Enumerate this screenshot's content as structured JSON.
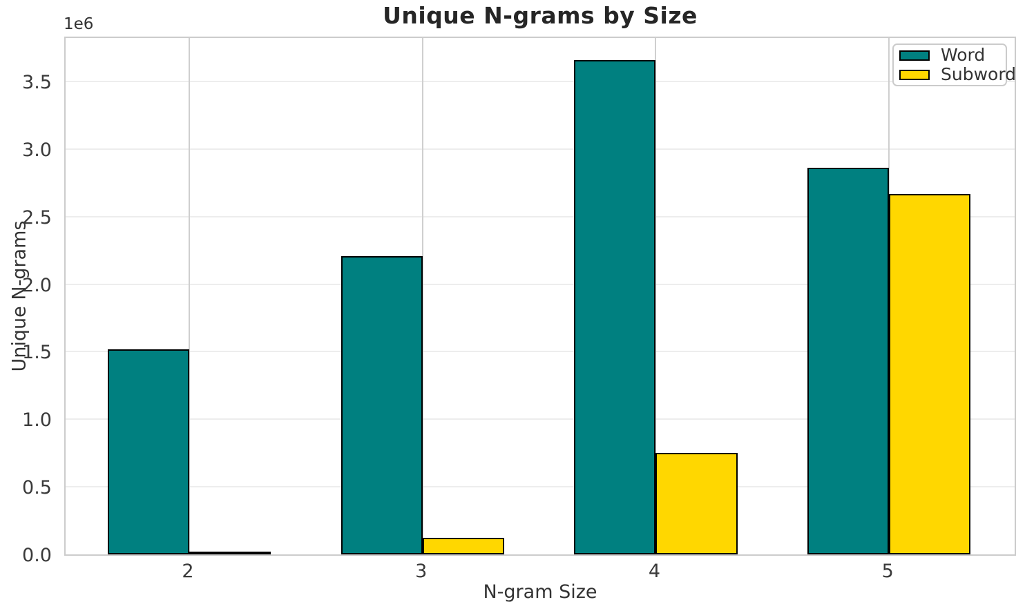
{
  "figure": {
    "title": "Unique N-grams by Size",
    "xlabel": "N-gram Size",
    "ylabel": "Unique N-grams",
    "offset_text": "1e6"
  },
  "legend": {
    "items": [
      {
        "label": "Word",
        "color": "#008080"
      },
      {
        "label": "Subword",
        "color": "#FFD700"
      }
    ]
  },
  "chart_data": {
    "type": "bar",
    "title": "Unique N-grams by Size",
    "xlabel": "N-gram Size",
    "ylabel": "Unique N-grams",
    "categories": [
      "2",
      "3",
      "4",
      "5"
    ],
    "series": [
      {
        "name": "Word",
        "color": "#008080",
        "values": [
          1520000,
          2210000,
          3660000,
          2860000
        ]
      },
      {
        "name": "Subword",
        "color": "#FFD700",
        "values": [
          15000,
          125000,
          750000,
          2670000
        ]
      }
    ],
    "bar_width": 0.35,
    "bar_edge_color": "#000000",
    "ylim": [
      0,
      3843000
    ],
    "xlim": [
      1.47,
      5.55
    ],
    "ytick_values": [
      0,
      500000,
      1000000,
      1500000,
      2000000,
      2500000,
      3000000,
      3500000
    ],
    "ytick_labels": [
      "0.0",
      "0.5",
      "1.0",
      "1.5",
      "2.0",
      "2.5",
      "3.0",
      "3.5"
    ],
    "y_offset_label": "1e6",
    "grid": true,
    "legend_position": "upper right"
  },
  "style": {
    "grid_h_color": "#ededed",
    "grid_v_color": "#cfcfcf",
    "spine_color": "#cccccc"
  }
}
